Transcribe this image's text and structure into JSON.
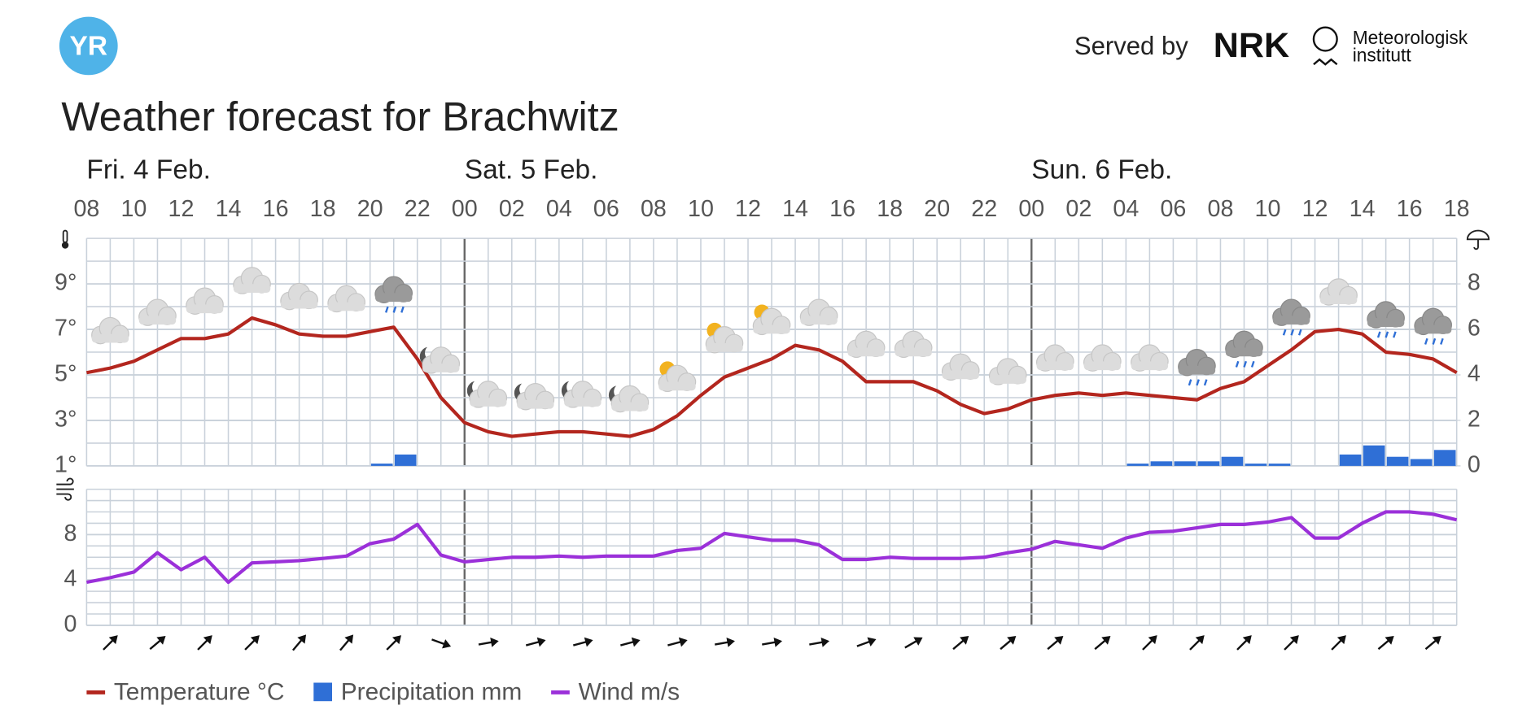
{
  "header": {
    "logo": "YR",
    "served_by": "Served by",
    "nrk": "NRK",
    "met_line1": "Meteorologisk",
    "met_line2": "institutt",
    "title": "Weather forecast for Brachwitz"
  },
  "chart_data": [
    {
      "type": "line",
      "days": [
        "Fri. 4 Feb.",
        "Sat. 5 Feb.",
        "Sun. 6 Feb."
      ],
      "categories": [
        "08",
        null,
        "10",
        null,
        "12",
        null,
        "14",
        null,
        "16",
        null,
        "18",
        null,
        "20",
        null,
        "22",
        null,
        "00",
        null,
        "02",
        null,
        "04",
        null,
        "06",
        null,
        "08",
        null,
        "10",
        null,
        "12",
        null,
        "14",
        null,
        "16",
        null,
        "18",
        null,
        "20",
        null,
        "22",
        null,
        "00",
        null,
        "02",
        null,
        "04",
        null,
        "06",
        null,
        "08",
        null,
        "10",
        null,
        "12",
        null,
        "14",
        null,
        "16",
        null,
        "18"
      ],
      "ylim": [
        1,
        11
      ],
      "yticks": [
        {
          "value": 1,
          "label": "1°"
        },
        {
          "value": 3,
          "label": "3°"
        },
        {
          "value": 5,
          "label": "5°"
        },
        {
          "value": 7,
          "label": "7°"
        },
        {
          "value": 9,
          "label": "9°"
        }
      ],
      "y2lim": [
        0,
        10
      ],
      "y2ticks": [
        0,
        2,
        4,
        6,
        8
      ],
      "grid": true,
      "series": [
        {
          "name": "Temperature °C",
          "color": "#b3261e",
          "type": "line",
          "values": [
            5.1,
            5.3,
            5.6,
            6.1,
            6.6,
            6.6,
            6.8,
            7.5,
            7.2,
            6.8,
            6.7,
            6.7,
            6.9,
            7.1,
            5.7,
            4.0,
            2.9,
            2.5,
            2.3,
            2.4,
            2.5,
            2.5,
            2.4,
            2.3,
            2.6,
            3.2,
            4.1,
            4.9,
            5.3,
            5.7,
            6.3,
            6.1,
            5.6,
            4.7,
            4.7,
            4.7,
            4.3,
            3.7,
            3.3,
            3.5,
            3.9,
            4.1,
            4.2,
            4.1,
            4.2,
            4.1,
            4.0,
            3.9,
            4.4,
            4.7,
            5.4,
            6.1,
            6.9,
            7.0,
            6.8,
            6.0,
            5.9,
            5.7,
            5.1
          ]
        },
        {
          "name": "Precipitation mm",
          "color": "#2f6fd6",
          "type": "bar",
          "axis": "y2",
          "values": [
            0,
            0,
            0,
            0,
            0,
            0,
            0,
            0,
            0,
            0,
            0,
            0,
            0.1,
            0.5,
            0,
            0,
            0,
            0,
            0,
            0,
            0,
            0,
            0,
            0,
            0,
            0,
            0,
            0,
            0,
            0,
            0,
            0,
            0,
            0,
            0,
            0,
            0,
            0,
            0,
            0,
            0,
            0,
            0,
            0,
            0.1,
            0.2,
            0.2,
            0.2,
            0.4,
            0.1,
            0.1,
            0,
            0,
            0.5,
            0.9,
            0.4,
            0.3,
            0.7,
            0
          ]
        }
      ]
    },
    {
      "type": "line",
      "ylim": [
        0,
        12
      ],
      "yticks": [
        0,
        4,
        8
      ],
      "grid": true,
      "series": [
        {
          "name": "Wind m/s",
          "color": "#9b30d9",
          "type": "line",
          "values": [
            3.8,
            4.2,
            4.7,
            6.4,
            4.9,
            6.0,
            3.8,
            5.5,
            5.6,
            5.7,
            5.9,
            6.1,
            7.2,
            7.6,
            8.9,
            6.2,
            5.6,
            5.8,
            6.0,
            6.0,
            6.1,
            6.0,
            6.1,
            6.1,
            6.1,
            6.6,
            6.8,
            8.1,
            7.8,
            7.5,
            7.5,
            7.1,
            5.8,
            5.8,
            6.0,
            5.9,
            5.9,
            5.9,
            6.0,
            6.4,
            6.7,
            7.4,
            7.1,
            6.8,
            7.7,
            8.2,
            8.3,
            8.6,
            8.9,
            8.9,
            9.1,
            9.5,
            7.7,
            7.7,
            9.0,
            10.0,
            10.0,
            9.8,
            9.3
          ]
        }
      ]
    }
  ]
}
